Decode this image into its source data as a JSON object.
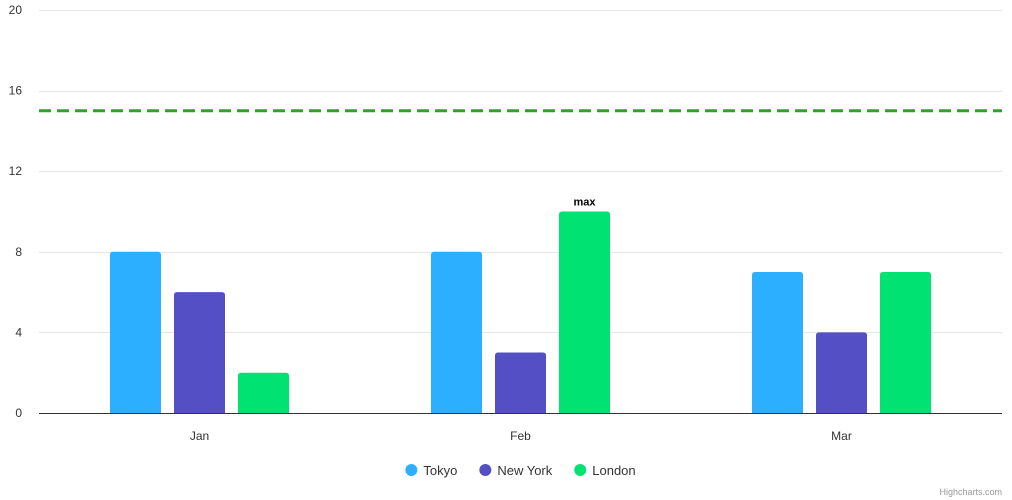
{
  "chart_data": {
    "type": "bar",
    "categories": [
      "Jan",
      "Feb",
      "Mar"
    ],
    "series": [
      {
        "name": "Tokyo",
        "values": [
          8,
          8,
          7
        ],
        "color": "#2caffe"
      },
      {
        "name": "New York",
        "values": [
          6,
          3,
          4
        ],
        "color": "#544fc5"
      },
      {
        "name": "London",
        "values": [
          2,
          10,
          7
        ],
        "color": "#00e272"
      }
    ],
    "ylim": [
      0,
      20
    ],
    "yticks": [
      0,
      4,
      8,
      12,
      16,
      20
    ],
    "grid": true,
    "legend_position": "bottom-center",
    "plot_line": {
      "value": 15,
      "color": "#33a02c",
      "style": "dashed"
    },
    "annotations": [
      {
        "series": "London",
        "category": "Feb",
        "text": "max"
      }
    ],
    "title": "",
    "xlabel": "",
    "ylabel": ""
  },
  "credits": "Highcharts.com"
}
